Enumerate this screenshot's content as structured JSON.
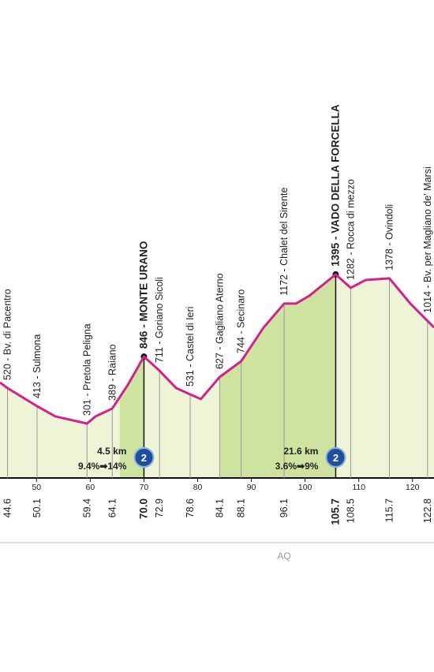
{
  "chart_data": {
    "type": "profile",
    "region": "AQ",
    "xlim": [
      43.2,
      124
    ],
    "xticks": [
      50,
      60,
      70,
      80,
      90,
      100,
      110,
      120
    ],
    "ylim": [
      0,
      3000
    ],
    "line_color": "#d4218e",
    "fill_color": "#eef4d6",
    "climb_color": "#cfe3a1",
    "profile": {
      "x": [
        43.2,
        44.6,
        50.1,
        53.5,
        59.4,
        61,
        64.1,
        67,
        70,
        72.9,
        76,
        78.6,
        80.6,
        84.1,
        88.1,
        92.3,
        96.1,
        98.3,
        100.8,
        105.7,
        108.5,
        111.3,
        115.7,
        119.6,
        124
      ],
      "values": [
        654,
        616,
        492,
        422,
        373,
        422,
        476,
        638,
        832,
        735,
        616,
        573,
        541,
        692,
        800,
        1032,
        1195,
        1195,
        1249,
        1395,
        1303,
        1357,
        1368,
        1195,
        1032
      ]
    },
    "waypoints": [
      {
        "km": 44.6,
        "label": "520 - Bv. di Pacentro"
      },
      {
        "km": 50.1,
        "label": "413 - Sulmona"
      },
      {
        "km": 59.4,
        "label": "301 - Pretola Peligna"
      },
      {
        "km": 64.1,
        "label": "389 - Raiano"
      },
      {
        "km": {
          "value": 70,
          "label": "70.0"
        },
        "label": "846 - MONTE URANO",
        "summit": true,
        "climb": {
          "length": {
            "value": 4.5,
            "label": "4.5 km"
          },
          "gradient": "9.4%➡14%",
          "category": "2"
        }
      },
      {
        "km": 72.9,
        "label": "711 - Goriano Sicoli"
      },
      {
        "km": 78.6,
        "label": "531 - Castel di Ieri"
      },
      {
        "km": 84.1,
        "label": "627 - Gagliano Aterno"
      },
      {
        "km": 88.1,
        "label": "744 - Secinaro"
      },
      {
        "km": 96.1,
        "label": "1172 - Chalet del Sirente"
      },
      {
        "km": 105.7,
        "label": "1395 - VADO DELLA FORCELLA",
        "summit": true,
        "climb": {
          "length": {
            "value": 21.6,
            "label": "21.6 km"
          },
          "gradient": "3.6%➡9%",
          "category": "2"
        }
      },
      {
        "km": 108.5,
        "label": "1282 - Rocca di mezzo"
      },
      {
        "km": 115.7,
        "label": "1378 - Ovindoli"
      },
      {
        "km": 122.8,
        "label": "1014 - Bv. per Magliano de' Marsi"
      }
    ]
  }
}
